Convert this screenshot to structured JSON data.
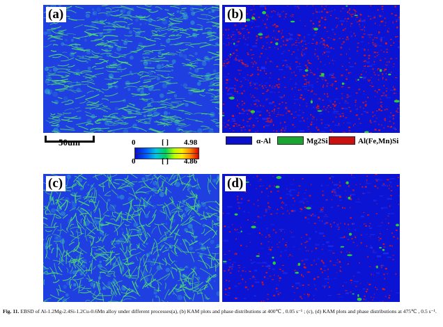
{
  "panels": {
    "a": {
      "label": "(a)",
      "map": "KAM",
      "base_color": "#1f3fe0",
      "boundary_color": "#52e06a",
      "accent_color": "#3fd0c8"
    },
    "b": {
      "label": "(b)",
      "map": "phase",
      "base_color": "#0a14d2",
      "phase2_color": "#2ecc3a",
      "phase3_color": "#e01818"
    },
    "c": {
      "label": "(c)",
      "map": "KAM",
      "base_color": "#1f3fe0",
      "boundary_color": "#52e06a",
      "accent_color": "#3fd0c8"
    },
    "d": {
      "label": "(d)",
      "map": "phase",
      "base_color": "#0a14d2",
      "phase2_color": "#2ecc3a",
      "phase3_color": "#e01818"
    }
  },
  "scale_bar": {
    "label": "50um"
  },
  "kam_colorbar_a": {
    "min": "0",
    "unit": "[ ]",
    "max": "4.98"
  },
  "kam_colorbar_c": {
    "min": "0",
    "unit": "[ ]",
    "max": "4.86"
  },
  "phase_legend": [
    {
      "label": "α-Al",
      "color": "#0a10cc"
    },
    {
      "label": "Mg2Si",
      "color": "#1aa630"
    },
    {
      "label": "Al(Fe,Mn)Si",
      "color": "#cc1010"
    }
  ],
  "caption": {
    "fig_label": "Fig. 11.",
    "text": "EBSD of Al-1.2Mg-2.4Si-1.2Cu-0.6Mn alloy under different processes(a), (b) KAM plots and phase distributions at 400℃ , 0.05 s⁻¹ ; (c), (d) KAM plots and phase distributions at 475℃ , 0.5 s⁻¹."
  }
}
